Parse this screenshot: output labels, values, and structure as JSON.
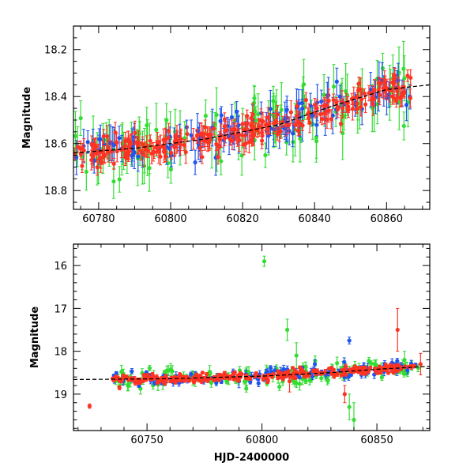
{
  "chart_data": [
    {
      "type": "scatter",
      "xlabel": "",
      "ylabel": "Magnitude",
      "xlim": [
        60773,
        60872
      ],
      "ylim": [
        18.88,
        18.1
      ],
      "y_inverted": true,
      "xticks": [
        60780,
        60800,
        60820,
        60840,
        60860
      ],
      "yticks": [
        18.2,
        18.4,
        18.6,
        18.8
      ],
      "tick_labels_x": [
        "60780",
        "60800",
        "60820",
        "60840",
        "60860"
      ],
      "tick_labels_y": [
        "18.2",
        "18.4",
        "18.6",
        "18.8"
      ],
      "series_colors": {
        "green": "#33dd33",
        "blue": "#1f55ee",
        "red": "#ff3322",
        "trend": "#000000"
      },
      "trend_model": {
        "x": [
          60773,
          60790,
          60810,
          60830,
          60845,
          60860,
          60872
        ],
        "y": [
          18.64,
          18.62,
          18.58,
          18.52,
          18.44,
          18.37,
          18.35
        ]
      }
    },
    {
      "type": "scatter",
      "xlabel": "HJD-2400000",
      "ylabel": "Magnitude",
      "xlim": [
        60718,
        60873
      ],
      "ylim": [
        19.85,
        15.5
      ],
      "y_inverted": true,
      "xticks": [
        60750,
        60800,
        60850
      ],
      "yticks": [
        16,
        17,
        18,
        19
      ],
      "tick_labels_x": [
        "60750",
        "60800",
        "60850"
      ],
      "tick_labels_y": [
        "16",
        "17",
        "18",
        "19"
      ],
      "series_colors": {
        "green": "#33dd33",
        "blue": "#1f55ee",
        "red": "#ff3322",
        "trend": "#000000"
      },
      "trend_model": {
        "x": [
          60718,
          60760,
          60800,
          60830,
          60850,
          60873
        ],
        "y": [
          18.66,
          18.64,
          18.58,
          18.5,
          18.42,
          18.35
        ]
      },
      "outliers": {
        "green": [
          [
            60801,
            15.9,
            0.12
          ],
          [
            60811,
            17.5,
            0.25
          ],
          [
            60815,
            18.1,
            0.3
          ],
          [
            60838,
            19.3,
            0.3
          ],
          [
            60840,
            19.6,
            0.4
          ],
          [
            60862,
            18.2,
            0.2
          ]
        ],
        "blue": [
          [
            60790,
            18.7,
            0.15
          ],
          [
            60823,
            18.3,
            0.1
          ],
          [
            60838,
            17.75,
            0.08
          ],
          [
            60846,
            18.4,
            0.12
          ]
        ],
        "red": [
          [
            60725,
            19.28,
            0.05
          ],
          [
            60738,
            18.85,
            0.05
          ],
          [
            60812,
            18.7,
            0.25
          ],
          [
            60836,
            19.0,
            0.2
          ],
          [
            60859,
            17.5,
            0.5
          ],
          [
            60869,
            18.3,
            0.25
          ]
        ]
      }
    }
  ]
}
